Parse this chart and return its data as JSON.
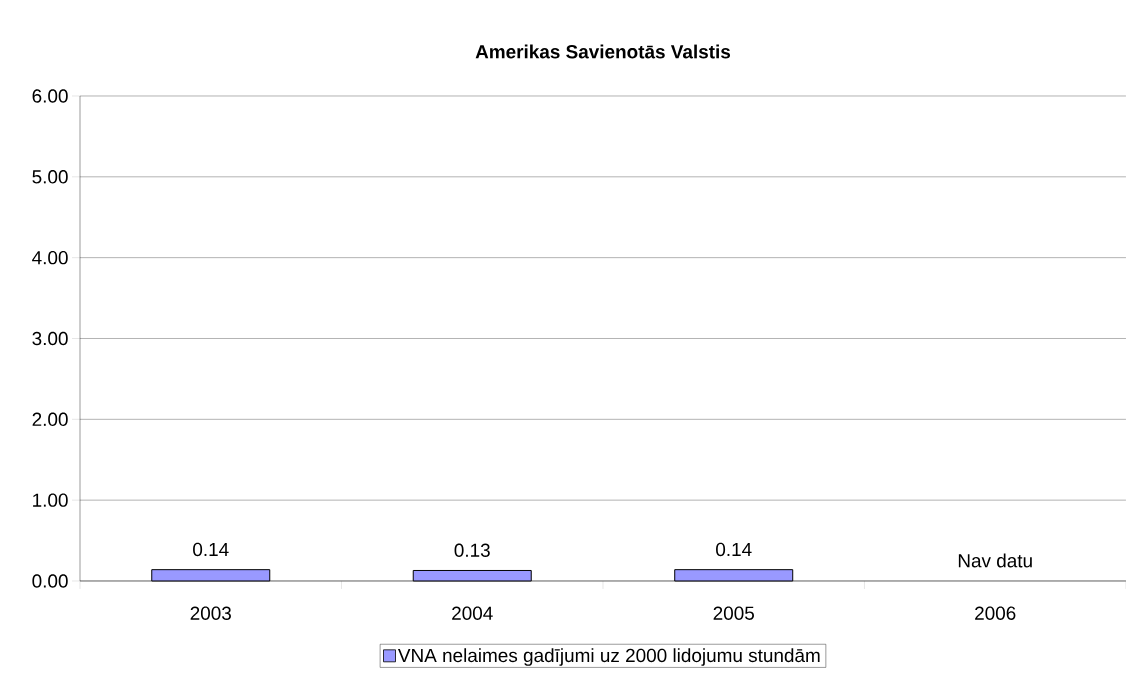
{
  "chart_data": {
    "type": "bar",
    "title": "Amerikas Savienotās Valstis",
    "categories": [
      "2003",
      "2004",
      "2005",
      "2006"
    ],
    "series": [
      {
        "name": "VNA nelaimes gadījumi uz 2000 lidojumu stundām",
        "color": "#9999ff",
        "values": [
          0.14,
          0.13,
          0.14,
          null
        ],
        "value_labels": [
          "0.14",
          "0.13",
          "0.14",
          "Nav datu"
        ]
      }
    ],
    "ylim": [
      0,
      6
    ],
    "yticks": [
      {
        "value": 0,
        "label": "0.00"
      },
      {
        "value": 1,
        "label": "1.00"
      },
      {
        "value": 2,
        "label": "2.00"
      },
      {
        "value": 3,
        "label": "3.00"
      },
      {
        "value": 4,
        "label": "4.00"
      },
      {
        "value": 5,
        "label": "5.00"
      },
      {
        "value": 6,
        "label": "6.00"
      }
    ],
    "grid": "y",
    "legend": "bottom"
  }
}
